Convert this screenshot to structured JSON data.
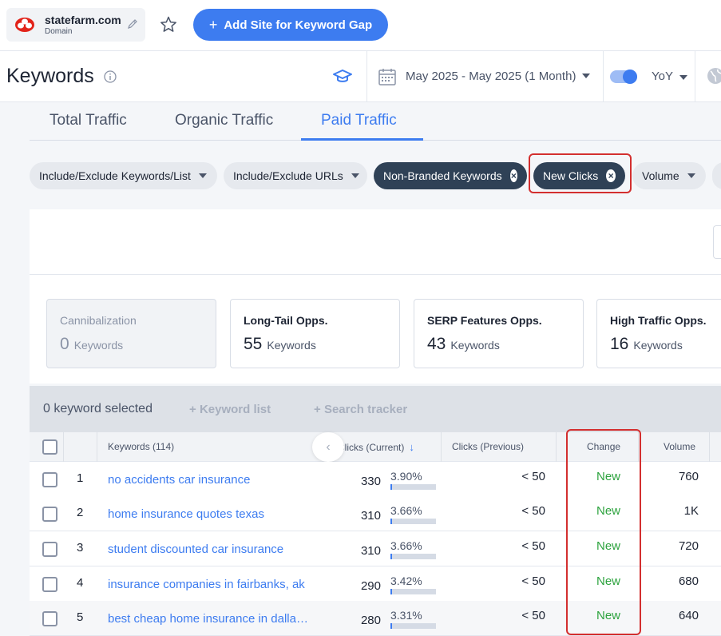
{
  "topbar": {
    "domain": "statefarm.com",
    "domain_type": "Domain",
    "add_site_label": "Add Site for Keyword Gap"
  },
  "header": {
    "title": "Keywords",
    "date_range": "May 2025 - May 2025 (1 Month)",
    "compare_label": "YoY",
    "toggle_on": true
  },
  "tabs": [
    "Total Traffic",
    "Organic Traffic",
    "Paid Traffic"
  ],
  "active_tab": "Paid Traffic",
  "filters": [
    {
      "label": "Include/Exclude Keywords/List",
      "style": "dropdown"
    },
    {
      "label": "Include/Exclude URLs",
      "style": "dropdown"
    },
    {
      "label": "Non-Branded Keywords",
      "style": "active"
    },
    {
      "label": "New Clicks",
      "style": "active"
    },
    {
      "label": "Volume",
      "style": "dropdown"
    }
  ],
  "opportunities": [
    {
      "title": "Cannibalization",
      "count": "0",
      "unit": "Keywords",
      "disabled": true
    },
    {
      "title": "Long-Tail Opps.",
      "count": "55",
      "unit": "Keywords",
      "disabled": false
    },
    {
      "title": "SERP Features Opps.",
      "count": "43",
      "unit": "Keywords",
      "disabled": false
    },
    {
      "title": "High Traffic Opps.",
      "count": "16",
      "unit": "Keywords",
      "disabled": false
    }
  ],
  "table": {
    "selection_text": "0 keyword selected",
    "actions": [
      "Keyword list",
      "Search tracker"
    ],
    "columns": {
      "keywords": "Keywords (114)",
      "clicks_current": "Clicks (Current)",
      "clicks_previous": "Clicks (Previous)",
      "change": "Change",
      "volume": "Volume"
    },
    "rows": [
      {
        "rank": "1",
        "keyword": "no accidents car insurance",
        "clicks": "330",
        "share": "3.90%",
        "share_value": 3.9,
        "previous": "< 50",
        "change": "New",
        "volume": "760"
      },
      {
        "rank": "2",
        "keyword": "home insurance quotes texas",
        "clicks": "310",
        "share": "3.66%",
        "share_value": 3.66,
        "previous": "< 50",
        "change": "New",
        "volume": "1K"
      },
      {
        "rank": "3",
        "keyword": "student discounted car insurance",
        "clicks": "310",
        "share": "3.66%",
        "share_value": 3.66,
        "previous": "< 50",
        "change": "New",
        "volume": "720"
      },
      {
        "rank": "4",
        "keyword": "insurance companies in fairbanks, ak",
        "clicks": "290",
        "share": "3.42%",
        "share_value": 3.42,
        "previous": "< 50",
        "change": "New",
        "volume": "680"
      },
      {
        "rank": "5",
        "keyword": "best cheap home insurance in dallas texas",
        "clicks": "280",
        "share": "3.31%",
        "share_value": 3.31,
        "previous": "< 50",
        "change": "New",
        "volume": "640"
      }
    ]
  },
  "colors": {
    "accent": "#3d7cf0",
    "active_filter": "#2f4156",
    "highlight": "#d32f2f",
    "positive": "#2ea33f"
  }
}
